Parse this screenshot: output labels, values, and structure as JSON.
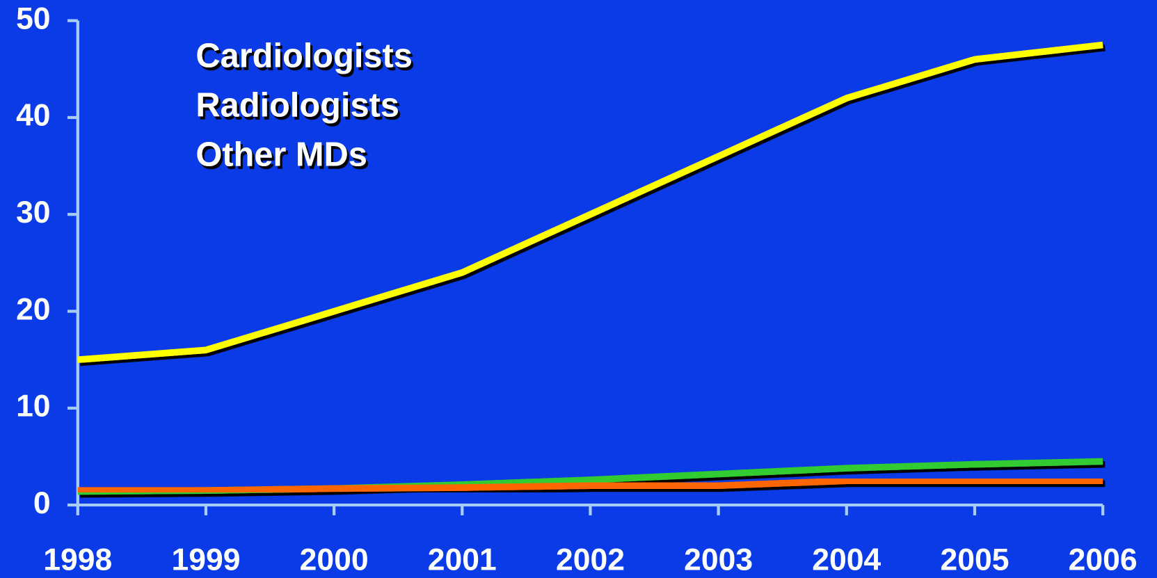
{
  "chart_data": {
    "type": "line",
    "x": [
      1998,
      1999,
      2000,
      2001,
      2002,
      2003,
      2004,
      2005,
      2006
    ],
    "xlim": [
      1998,
      2006
    ],
    "xticks": [
      1998,
      1999,
      2000,
      2001,
      2002,
      2003,
      2004,
      2005,
      2006
    ],
    "ylim": [
      0,
      50
    ],
    "yticks": [
      0,
      10,
      20,
      30,
      40,
      50
    ],
    "legend": "top-left",
    "series": [
      {
        "name": "Cardiologists",
        "color": "#ffff00",
        "values": [
          15,
          16,
          20,
          24,
          30,
          36,
          42,
          46,
          47.5
        ]
      },
      {
        "name": "Radiologists",
        "color": "#ff6600",
        "values": [
          1.5,
          1.5,
          1.7,
          1.8,
          2,
          2,
          2.5,
          2.5,
          2.5
        ]
      },
      {
        "name": "Other MDs",
        "color": "#33cc33",
        "values": [
          1.4,
          1.5,
          1.7,
          2.1,
          2.6,
          3.2,
          3.8,
          4.2,
          4.5
        ]
      }
    ]
  }
}
